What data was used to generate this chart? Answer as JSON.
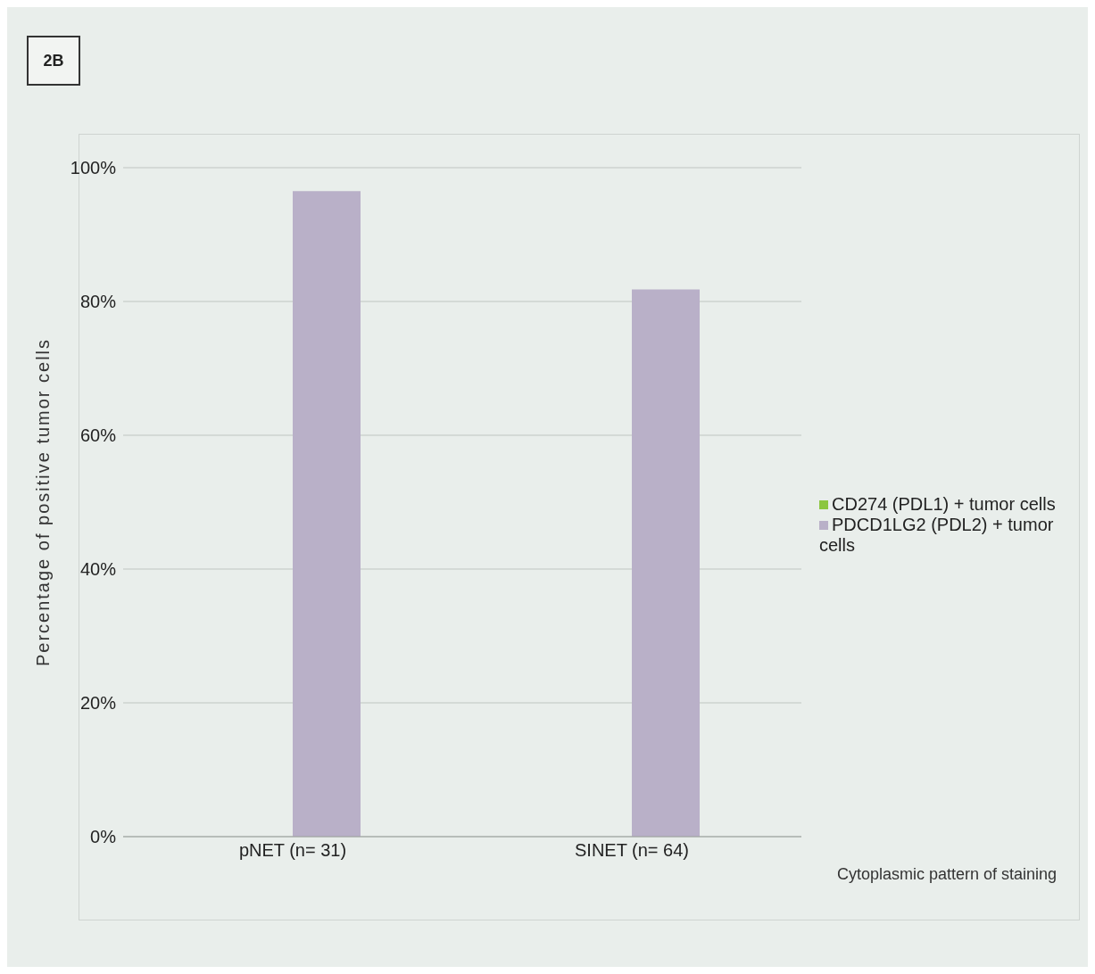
{
  "chart_data": {
    "type": "bar",
    "categories": [
      "pNET (n= 31)",
      "SINET (n= 64)"
    ],
    "series": [
      {
        "name": "CD274 (PDL1) + tumor cells",
        "color": "#8cc63f",
        "values": [
          0,
          0
        ]
      },
      {
        "name": "PDCD1LG2 (PDL2) + tumor cells",
        "color": "#b9b0c8",
        "values": [
          96.5,
          81.8
        ]
      }
    ],
    "ylabel": "Percentage of positive tumor cells",
    "ylim": [
      0,
      100
    ],
    "yticks": [
      {
        "value": 0,
        "label": "0%"
      },
      {
        "value": 20,
        "label": "20%"
      },
      {
        "value": 40,
        "label": "40%"
      },
      {
        "value": 60,
        "label": "60%"
      },
      {
        "value": 80,
        "label": "80%"
      },
      {
        "value": 100,
        "label": "100%"
      }
    ],
    "grid": "y",
    "legend": "right",
    "annotations": [
      "2B",
      "Cytoplasmic pattern of staining"
    ]
  }
}
